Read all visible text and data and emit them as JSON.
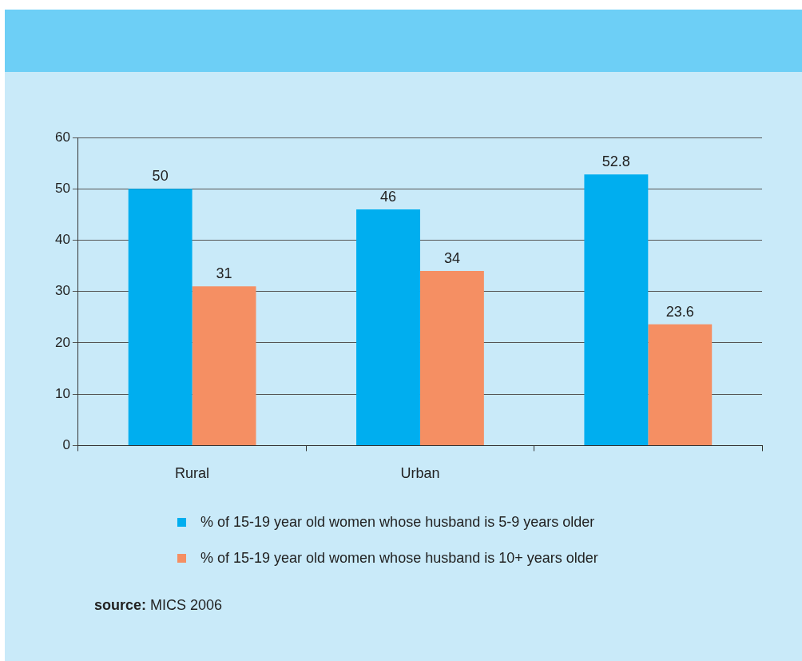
{
  "chart_data": {
    "type": "bar",
    "categories": [
      "Rural",
      "Urban",
      null
    ],
    "series": [
      {
        "name": "% of 15-19 year old women whose husband is 5-9 years older",
        "color": "#00aeef",
        "values": [
          50,
          46,
          52.8
        ]
      },
      {
        "name": "% of 15-19 year old women whose husband is 10+ years older",
        "color": "#f58f63",
        "values": [
          31,
          34,
          23.6
        ]
      }
    ],
    "ylim": [
      0,
      60
    ],
    "yticks": [
      0,
      10,
      20,
      30,
      40,
      50,
      60
    ],
    "grid": "y",
    "legend": "bottom",
    "data_labels": true,
    "annotations": [
      "source: MICS 2006"
    ]
  }
}
